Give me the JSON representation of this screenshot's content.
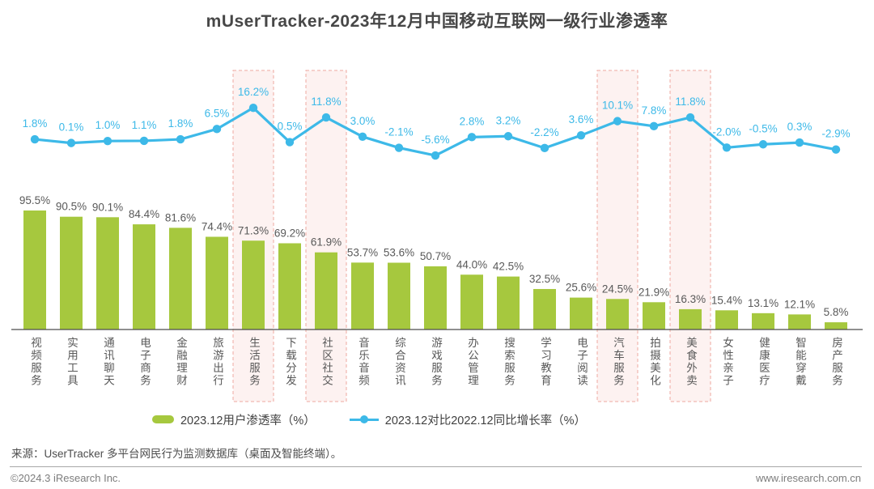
{
  "title": "mUserTracker-2023年12月中国移动互联网一级行业渗透率",
  "chart_data": {
    "type": "bar",
    "subtype": "bar-line-combo",
    "title": "mUserTracker-2023年12月中国移动互联网一级行业渗透率",
    "categories": [
      "视频服务",
      "实用工具",
      "通讯聊天",
      "电子商务",
      "金融理财",
      "旅游出行",
      "生活服务",
      "下载分发",
      "社区社交",
      "音乐音频",
      "综合资讯",
      "游戏服务",
      "办公管理",
      "搜索服务",
      "学习教育",
      "电子阅读",
      "汽车服务",
      "拍摄美化",
      "美食外卖",
      "女性亲子",
      "健康医疗",
      "智能穿戴",
      "房产服务"
    ],
    "series": [
      {
        "name": "2023.12用户渗透率（%）",
        "type": "bar",
        "color": "#a6c83e",
        "values": [
          95.5,
          90.5,
          90.1,
          84.4,
          81.6,
          74.4,
          71.3,
          69.2,
          61.9,
          53.7,
          53.6,
          50.7,
          44.0,
          42.5,
          32.5,
          25.6,
          24.5,
          21.9,
          16.3,
          15.4,
          13.1,
          12.1,
          5.8
        ]
      },
      {
        "name": "2023.12对比2022.12同比增长率（%）",
        "type": "line",
        "color": "#3db9e8",
        "values": [
          1.8,
          0.1,
          1.0,
          1.1,
          1.8,
          6.5,
          16.2,
          0.5,
          11.8,
          3.0,
          -2.1,
          -5.6,
          2.8,
          3.2,
          -2.2,
          3.6,
          10.1,
          7.8,
          11.8,
          -2.0,
          -0.5,
          0.3,
          -2.9
        ]
      }
    ],
    "highlighted_categories": [
      "生活服务",
      "社区社交",
      "汽车服务",
      "美食外卖"
    ],
    "highlight_indices": [
      6,
      8,
      16,
      18
    ],
    "value_label_suffix": "%",
    "ylim_bar": [
      0,
      100
    ],
    "grid": false,
    "legend_position": "bottom"
  },
  "legend": {
    "bar_label": "2023.12用户渗透率（%）",
    "line_label": "2023.12对比2022.12同比增长率（%）"
  },
  "source": "来源：UserTracker 多平台网民行为监测数据库（桌面及智能终端）。",
  "footer": {
    "copyright": "©2024.3 iResearch Inc.",
    "website": "www.iresearch.com.cn"
  },
  "colors": {
    "bar": "#a6c83e",
    "line": "#3db9e8",
    "band_fill": "#fdf2f1",
    "band_border": "#eea8a0",
    "axis": "#4d4d4d",
    "bar_label": "#595959",
    "line_label": "#3db9e8"
  }
}
